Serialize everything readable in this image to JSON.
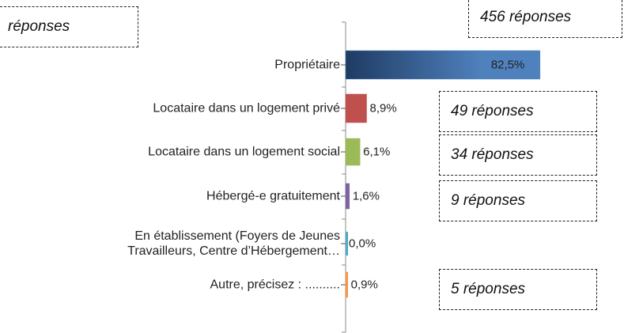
{
  "chart_data": {
    "type": "bar",
    "orientation": "horizontal",
    "categories": [
      "Propriétaire",
      "Locataire dans un logement privé",
      "Locataire dans un logement social",
      "Hébergé-e gratuitement",
      "En établissement (Foyers de Jeunes\nTravailleurs, Centre d’Hébergement…",
      "Autre, précisez : .........."
    ],
    "values": [
      82.5,
      8.9,
      6.1,
      1.6,
      0.0,
      0.9
    ],
    "value_labels": [
      "82,5%",
      "8,9%",
      "6,1%",
      "1,6%",
      "0,0%",
      "0,9%"
    ],
    "colors": [
      "#4f81bd",
      "#c0504d",
      "#9bbb59",
      "#8064a2",
      "#4bacc6",
      "#f79646"
    ],
    "annotations": [
      "réponses",
      "456 réponses",
      "49 réponses",
      "34 réponses",
      "9 réponses",
      "5 réponses"
    ]
  }
}
